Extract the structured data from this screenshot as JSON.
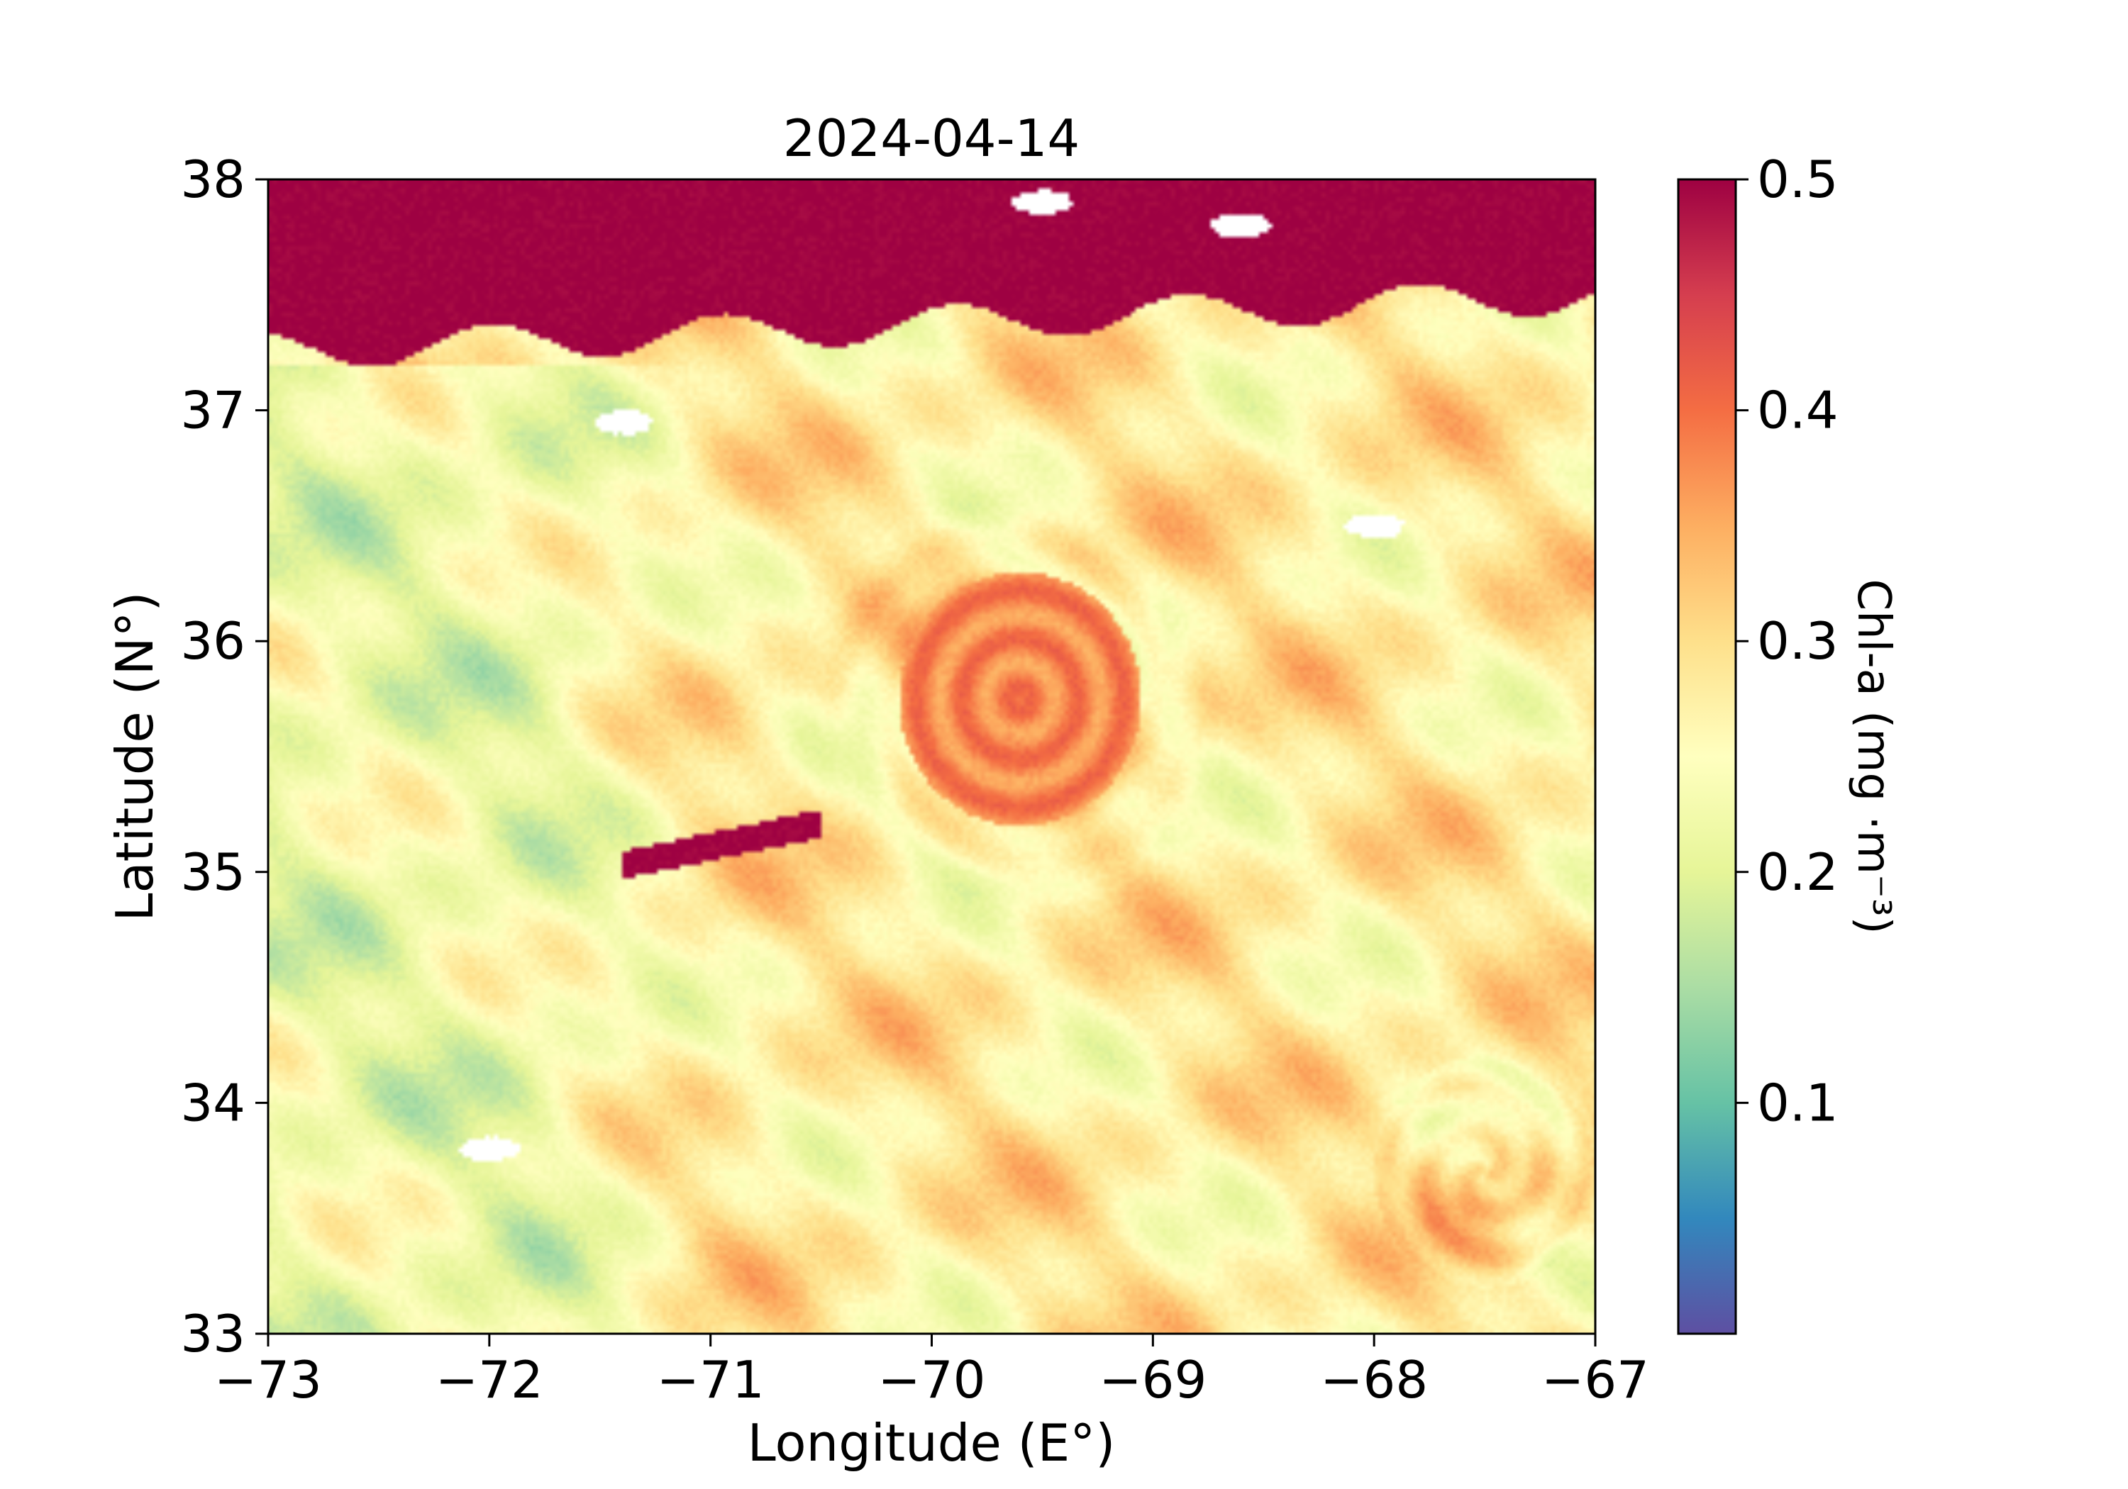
{
  "chart_data": {
    "type": "heatmap",
    "title": "2024-04-14",
    "xlabel": "Longitude (E°)",
    "ylabel": "Latitude (N°)",
    "xlim": [
      -73,
      -67
    ],
    "ylim": [
      33,
      38
    ],
    "xticks": [
      -73,
      -72,
      -71,
      -70,
      -69,
      -68,
      -67
    ],
    "xtick_labels": [
      "−73",
      "−72",
      "−71",
      "−70",
      "−69",
      "−68",
      "−67"
    ],
    "yticks": [
      33,
      34,
      35,
      36,
      37,
      38
    ],
    "ytick_labels": [
      "33",
      "34",
      "35",
      "36",
      "37",
      "38"
    ],
    "colormap": "Spectral_r",
    "grid": false,
    "colorbar": {
      "label": "Chl-a (mg ·m⁻³)",
      "range": [
        0.0,
        0.5
      ],
      "ticks": [
        0.1,
        0.2,
        0.3,
        0.4,
        0.5
      ],
      "tick_labels": [
        "0.1",
        "0.2",
        "0.3",
        "0.4",
        "0.5"
      ],
      "colors": [
        "#5e4fa2",
        "#3288bd",
        "#66c2a5",
        "#abdda4",
        "#e6f598",
        "#ffffbf",
        "#fee08b",
        "#fdae61",
        "#f46d43",
        "#d53e4f",
        "#9e0142"
      ]
    },
    "features": [
      {
        "name": "high-chl coastal band",
        "lon_range": [
          -73,
          -67
        ],
        "lat_range": [
          37.3,
          38.0
        ],
        "value": 0.5
      },
      {
        "name": "central eddy core",
        "center": [
          -69.6,
          35.75
        ],
        "radius_deg": 0.55,
        "value": 0.4
      },
      {
        "name": "low-chl western waters",
        "lon_range": [
          -73,
          -71.2
        ],
        "lat_range": [
          33.5,
          37.2
        ],
        "value": 0.22
      },
      {
        "name": "filament",
        "from": [
          -71.3,
          35.05
        ],
        "to": [
          -70.8,
          35.15
        ],
        "value": 0.5
      },
      {
        "name": "southeast eddy",
        "center": [
          -67.5,
          33.7
        ],
        "radius_deg": 0.5,
        "value": 0.36
      },
      {
        "name": "cloud / missing data",
        "areas": [
          [
            -68.6,
            37.8
          ],
          [
            -71.4,
            36.95
          ],
          [
            -72.0,
            33.8
          ],
          [
            -68.0,
            36.5
          ],
          [
            -69.5,
            37.9
          ]
        ]
      }
    ]
  }
}
